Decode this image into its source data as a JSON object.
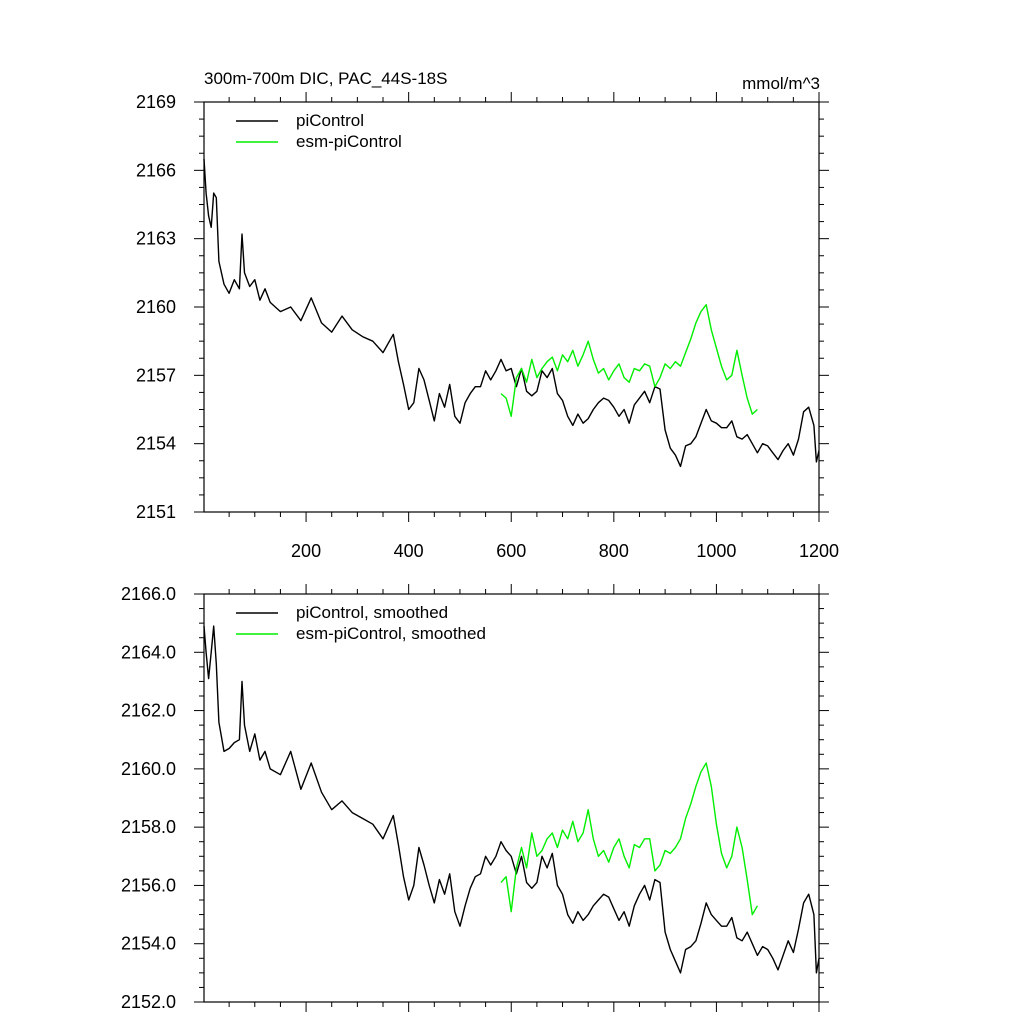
{
  "chart_data": [
    {
      "type": "line",
      "title": "300m-700m DIC, PAC_44S-18S",
      "units": "mmol/m^3",
      "xlim": [
        1,
        1200
      ],
      "ylim": [
        2151,
        2169
      ],
      "xticks": [
        200,
        400,
        600,
        800,
        1000,
        1200
      ],
      "xtick_labels": [
        "200",
        "400",
        "600",
        "800",
        "1000",
        "1200"
      ],
      "yticks": [
        2151,
        2154,
        2157,
        2160,
        2163,
        2166,
        2169
      ],
      "ytick_labels": [
        "2151",
        "2154",
        "2157",
        "2160",
        "2163",
        "2166",
        "2169"
      ],
      "legend_position": "top-left",
      "series": [
        {
          "name": "piControl",
          "color": "#000000",
          "x": [
            1,
            5,
            10,
            15,
            20,
            25,
            30,
            40,
            50,
            60,
            70,
            75,
            80,
            90,
            100,
            110,
            120,
            130,
            150,
            170,
            190,
            210,
            230,
            250,
            270,
            290,
            310,
            330,
            350,
            370,
            380,
            390,
            400,
            410,
            420,
            430,
            440,
            450,
            460,
            470,
            480,
            490,
            500,
            510,
            520,
            530,
            540,
            550,
            560,
            570,
            580,
            590,
            600,
            610,
            620,
            630,
            640,
            650,
            660,
            670,
            680,
            690,
            700,
            710,
            720,
            730,
            740,
            750,
            760,
            770,
            780,
            790,
            800,
            810,
            820,
            830,
            840,
            850,
            860,
            870,
            880,
            890,
            900,
            910,
            920,
            930,
            940,
            950,
            960,
            970,
            980,
            990,
            1000,
            1010,
            1020,
            1030,
            1040,
            1050,
            1060,
            1070,
            1080,
            1090,
            1100,
            1110,
            1120,
            1130,
            1140,
            1150,
            1160,
            1170,
            1180,
            1190,
            1195,
            1200
          ],
          "values": [
            2166.5,
            2165.0,
            2164.0,
            2163.5,
            2165.0,
            2164.8,
            2162.0,
            2161.0,
            2160.6,
            2161.2,
            2160.8,
            2163.2,
            2161.5,
            2160.9,
            2161.2,
            2160.3,
            2160.8,
            2160.2,
            2159.8,
            2160.0,
            2159.4,
            2160.4,
            2159.3,
            2158.9,
            2159.6,
            2159.0,
            2158.7,
            2158.5,
            2158.0,
            2158.8,
            2157.6,
            2156.6,
            2155.5,
            2155.8,
            2157.3,
            2156.8,
            2155.9,
            2155.0,
            2156.2,
            2155.6,
            2156.6,
            2155.2,
            2154.9,
            2155.8,
            2156.2,
            2156.5,
            2156.5,
            2157.2,
            2156.8,
            2157.2,
            2157.7,
            2157.2,
            2157.3,
            2156.5,
            2157.3,
            2156.3,
            2156.1,
            2156.3,
            2157.2,
            2156.9,
            2157.3,
            2156.2,
            2155.9,
            2155.2,
            2154.8,
            2155.3,
            2154.9,
            2155.1,
            2155.5,
            2155.8,
            2156.0,
            2155.9,
            2155.6,
            2155.2,
            2155.5,
            2154.9,
            2155.7,
            2156.0,
            2156.3,
            2155.8,
            2156.5,
            2156.4,
            2154.6,
            2153.8,
            2153.5,
            2153.0,
            2153.9,
            2154.0,
            2154.3,
            2154.9,
            2155.5,
            2155.0,
            2154.9,
            2154.7,
            2154.7,
            2155.0,
            2154.3,
            2154.2,
            2154.4,
            2154.0,
            2153.6,
            2154.0,
            2153.9,
            2153.6,
            2153.3,
            2153.7,
            2154.0,
            2153.5,
            2154.2,
            2155.4,
            2155.6,
            2154.8,
            2153.2,
            2153.7
          ]
        },
        {
          "name": "esm-piControl",
          "color": "#00ee00",
          "x": [
            580,
            590,
            600,
            610,
            620,
            630,
            640,
            650,
            660,
            670,
            680,
            690,
            700,
            710,
            720,
            730,
            740,
            750,
            760,
            770,
            780,
            790,
            800,
            810,
            820,
            830,
            840,
            850,
            860,
            870,
            880,
            890,
            900,
            910,
            920,
            930,
            940,
            950,
            960,
            970,
            980,
            990,
            1000,
            1010,
            1020,
            1030,
            1040,
            1050,
            1060,
            1070,
            1080
          ],
          "values": [
            2156.2,
            2156.0,
            2155.2,
            2156.9,
            2157.3,
            2156.7,
            2157.7,
            2156.9,
            2157.3,
            2157.6,
            2157.8,
            2157.2,
            2157.9,
            2157.6,
            2158.1,
            2157.4,
            2157.9,
            2158.5,
            2157.7,
            2157.1,
            2157.3,
            2156.8,
            2157.2,
            2157.5,
            2156.9,
            2156.7,
            2157.3,
            2157.2,
            2157.5,
            2157.4,
            2156.5,
            2156.9,
            2157.5,
            2157.3,
            2157.6,
            2157.4,
            2158.0,
            2158.6,
            2159.3,
            2159.8,
            2160.1,
            2159.0,
            2158.2,
            2157.4,
            2156.8,
            2157.0,
            2158.1,
            2157.0,
            2156.0,
            2155.3,
            2155.5
          ]
        }
      ]
    },
    {
      "type": "line",
      "xlim": [
        1,
        1200
      ],
      "ylim": [
        2152.0,
        2166.0
      ],
      "xticks": [
        200,
        400,
        600,
        800,
        1000,
        1200
      ],
      "yticks": [
        2152.0,
        2154.0,
        2156.0,
        2158.0,
        2160.0,
        2162.0,
        2164.0,
        2166.0
      ],
      "ytick_labels": [
        "2152.0",
        "2154.0",
        "2156.0",
        "2158.0",
        "2160.0",
        "2162.0",
        "2164.0",
        "2166.0"
      ],
      "legend_position": "top-left",
      "series": [
        {
          "name": "piControl, smoothed",
          "color": "#000000",
          "x": [
            1,
            5,
            10,
            15,
            20,
            25,
            30,
            40,
            50,
            60,
            70,
            75,
            80,
            90,
            100,
            110,
            120,
            130,
            150,
            170,
            190,
            210,
            230,
            250,
            270,
            290,
            310,
            330,
            350,
            370,
            380,
            390,
            400,
            410,
            420,
            430,
            440,
            450,
            460,
            470,
            480,
            490,
            500,
            510,
            520,
            530,
            540,
            550,
            560,
            570,
            580,
            590,
            600,
            610,
            620,
            630,
            640,
            650,
            660,
            670,
            680,
            690,
            700,
            710,
            720,
            730,
            740,
            750,
            760,
            770,
            780,
            790,
            800,
            810,
            820,
            830,
            840,
            850,
            860,
            870,
            880,
            890,
            900,
            910,
            920,
            930,
            940,
            950,
            960,
            970,
            980,
            990,
            1000,
            1010,
            1020,
            1030,
            1040,
            1050,
            1060,
            1070,
            1080,
            1090,
            1100,
            1110,
            1120,
            1130,
            1140,
            1150,
            1160,
            1170,
            1180,
            1190,
            1195,
            1200
          ],
          "values": [
            2164.9,
            2164.0,
            2163.1,
            2164.0,
            2164.9,
            2163.6,
            2161.6,
            2160.6,
            2160.7,
            2160.9,
            2161.0,
            2163.0,
            2161.5,
            2160.6,
            2161.2,
            2160.3,
            2160.6,
            2160.0,
            2159.8,
            2160.6,
            2159.3,
            2160.2,
            2159.2,
            2158.6,
            2158.9,
            2158.5,
            2158.3,
            2158.1,
            2157.6,
            2158.4,
            2157.4,
            2156.3,
            2155.5,
            2156.0,
            2157.3,
            2156.7,
            2156.0,
            2155.4,
            2156.2,
            2155.7,
            2156.4,
            2155.1,
            2154.6,
            2155.3,
            2155.9,
            2156.3,
            2156.4,
            2157.0,
            2156.7,
            2157.0,
            2157.5,
            2157.2,
            2157.0,
            2156.4,
            2157.0,
            2156.1,
            2155.9,
            2156.1,
            2157.0,
            2156.6,
            2157.1,
            2156.0,
            2155.7,
            2155.0,
            2154.7,
            2155.1,
            2154.8,
            2155.0,
            2155.3,
            2155.5,
            2155.7,
            2155.6,
            2155.2,
            2154.8,
            2155.1,
            2154.6,
            2155.3,
            2155.7,
            2156.0,
            2155.5,
            2156.2,
            2156.1,
            2154.4,
            2153.8,
            2153.4,
            2153.0,
            2153.8,
            2153.9,
            2154.1,
            2154.7,
            2155.4,
            2155.0,
            2154.8,
            2154.6,
            2154.6,
            2154.9,
            2154.2,
            2154.1,
            2154.4,
            2154.0,
            2153.6,
            2153.9,
            2153.8,
            2153.5,
            2153.1,
            2153.6,
            2154.1,
            2153.7,
            2154.5,
            2155.4,
            2155.7,
            2155.0,
            2153.0,
            2153.5
          ]
        },
        {
          "name": "esm-piControl, smoothed",
          "color": "#00ee00",
          "x": [
            580,
            590,
            600,
            610,
            620,
            630,
            640,
            650,
            660,
            670,
            680,
            690,
            700,
            710,
            720,
            730,
            740,
            750,
            760,
            770,
            780,
            790,
            800,
            810,
            820,
            830,
            840,
            850,
            860,
            870,
            880,
            890,
            900,
            910,
            920,
            930,
            940,
            950,
            960,
            970,
            980,
            990,
            1000,
            1010,
            1020,
            1030,
            1040,
            1050,
            1060,
            1070,
            1080
          ],
          "values": [
            2156.1,
            2156.3,
            2155.1,
            2156.6,
            2157.3,
            2156.6,
            2157.8,
            2157.0,
            2157.2,
            2157.6,
            2157.8,
            2157.3,
            2157.9,
            2157.6,
            2158.2,
            2157.5,
            2157.8,
            2158.6,
            2157.6,
            2157.0,
            2157.2,
            2156.8,
            2157.3,
            2157.6,
            2157.0,
            2156.6,
            2157.4,
            2157.3,
            2157.6,
            2157.6,
            2156.5,
            2156.7,
            2157.2,
            2157.1,
            2157.3,
            2157.6,
            2158.3,
            2158.8,
            2159.4,
            2159.9,
            2160.2,
            2159.4,
            2158.1,
            2157.1,
            2156.6,
            2157.0,
            2158.0,
            2157.3,
            2156.2,
            2155.0,
            2155.3
          ]
        }
      ]
    }
  ]
}
